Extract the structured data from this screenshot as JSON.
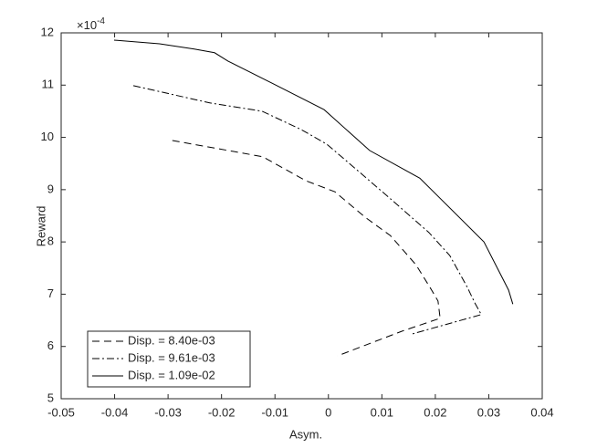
{
  "chart_data": {
    "type": "line",
    "xlabel": "Asym.",
    "ylabel": "Reward",
    "y_exponent": {
      "base": "×10",
      "power": "-4"
    },
    "xlim": [
      -0.05,
      0.04
    ],
    "xticks": [
      -0.05,
      -0.04,
      -0.03,
      -0.02,
      -0.01,
      0,
      0.01,
      0.02,
      0.03,
      0.04
    ],
    "ylim": [
      5,
      12
    ],
    "yticks": [
      5,
      6,
      7,
      8,
      9,
      10,
      11,
      12
    ],
    "grid": false,
    "legend": "lower-left",
    "series": [
      {
        "name": "Disp. = 8.40e-03",
        "color": "#000000",
        "dash": "dashed",
        "x": [
          -0.0292,
          -0.0188,
          -0.0123,
          -0.0042,
          0.0012,
          0.0069,
          0.0116,
          0.0164,
          0.0193,
          0.0205,
          0.0209,
          0.0137,
          0.0017
        ],
        "values": [
          9.94,
          9.75,
          9.63,
          9.17,
          8.96,
          8.47,
          8.12,
          7.56,
          7.08,
          6.87,
          6.54,
          6.29,
          5.82
        ]
      },
      {
        "name": "Disp. = 9.61e-03",
        "color": "#000000",
        "dash": "dashdot",
        "x": [
          -0.0365,
          -0.0222,
          -0.0124,
          -0.0051,
          -0.0003,
          0.0069,
          0.012,
          0.0188,
          0.0227,
          0.026,
          0.0274,
          0.0286,
          0.0157
        ],
        "values": [
          10.99,
          10.66,
          10.5,
          10.15,
          9.87,
          9.24,
          8.79,
          8.18,
          7.74,
          7.13,
          6.83,
          6.61,
          6.24
        ]
      },
      {
        "name": "Disp. = 1.09e-02",
        "color": "#000000",
        "dash": "solid",
        "x": [
          -0.0401,
          -0.0316,
          -0.0251,
          -0.0213,
          -0.0188,
          -0.0102,
          -0.0008,
          0.0077,
          0.0171,
          0.0291,
          0.0337,
          0.0345
        ],
        "values": [
          11.86,
          11.79,
          11.69,
          11.62,
          11.46,
          11.02,
          10.53,
          9.75,
          9.22,
          8.0,
          7.08,
          6.81
        ]
      }
    ]
  }
}
